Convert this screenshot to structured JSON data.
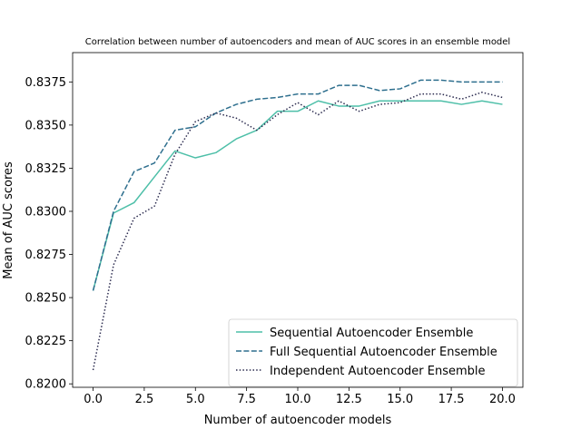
{
  "chart_data": {
    "type": "line",
    "title": "Correlation between number of autoencoders and mean of AUC scores in an ensemble model",
    "xlabel": "Number of autoencoder models",
    "ylabel": "Mean of AUC scores",
    "xlim": [
      -1.0,
      21.0
    ],
    "ylim": [
      0.8198,
      0.8392
    ],
    "x_ticks": [
      0.0,
      2.5,
      5.0,
      7.5,
      10.0,
      12.5,
      15.0,
      17.5,
      20.0
    ],
    "x_tick_labels": [
      "0.0",
      "2.5",
      "5.0",
      "7.5",
      "10.0",
      "12.5",
      "15.0",
      "17.5",
      "20.0"
    ],
    "y_ticks": [
      0.82,
      0.8225,
      0.825,
      0.8275,
      0.83,
      0.8325,
      0.835,
      0.8375
    ],
    "y_tick_labels": [
      "0.8200",
      "0.8225",
      "0.8250",
      "0.8275",
      "0.8300",
      "0.8325",
      "0.8350",
      "0.8375"
    ],
    "grid": false,
    "legend_position": "lower-right",
    "x": [
      0,
      1,
      2,
      3,
      4,
      5,
      6,
      7,
      8,
      9,
      10,
      11,
      12,
      13,
      14,
      15,
      16,
      17,
      18,
      19,
      20
    ],
    "series": [
      {
        "name": "Sequential Autoencoder Ensemble",
        "color": "#4dbfa8",
        "dash": "solid",
        "values": [
          0.8254,
          0.8299,
          0.8305,
          0.832,
          0.8335,
          0.8331,
          0.8334,
          0.8342,
          0.8347,
          0.8358,
          0.8358,
          0.8364,
          0.8361,
          0.8361,
          0.8364,
          0.8364,
          0.8364,
          0.8364,
          0.8362,
          0.8364,
          0.8362
        ]
      },
      {
        "name": "Full Sequential Autoencoder Ensemble",
        "color": "#2e6f8e",
        "dash": "dashed",
        "values": [
          0.8254,
          0.83,
          0.8323,
          0.8328,
          0.8347,
          0.8349,
          0.8357,
          0.8362,
          0.8365,
          0.8366,
          0.8368,
          0.8368,
          0.8373,
          0.8373,
          0.837,
          0.8371,
          0.8376,
          0.8376,
          0.8375,
          0.8375,
          0.8375
        ]
      },
      {
        "name": "Independent Autoencoder Ensemble",
        "color": "#2b2b4f",
        "dash": "dotted",
        "values": [
          0.8208,
          0.8269,
          0.8296,
          0.8303,
          0.8333,
          0.8352,
          0.8357,
          0.8354,
          0.8347,
          0.8356,
          0.8363,
          0.8356,
          0.8364,
          0.8358,
          0.8362,
          0.8363,
          0.8368,
          0.8368,
          0.8365,
          0.8369,
          0.8366
        ]
      }
    ]
  }
}
